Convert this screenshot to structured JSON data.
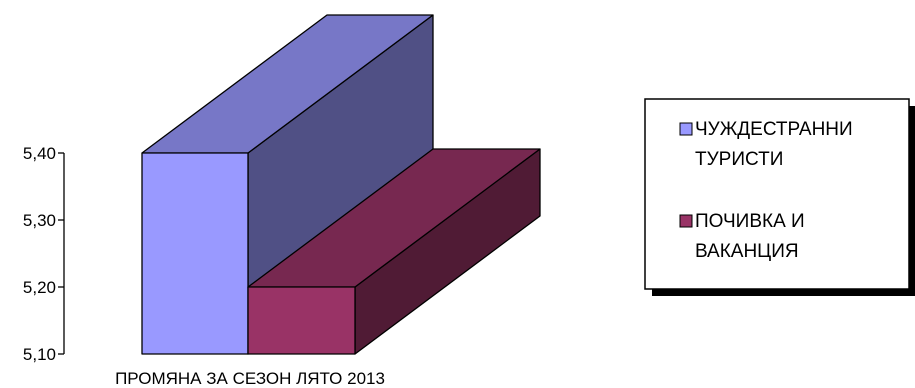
{
  "chart_data": {
    "type": "bar",
    "categories": [
      "ПРОМЯНА ЗА СЕЗОН ЛЯТО 2013"
    ],
    "series": [
      {
        "name": "ЧУЖДЕСТРАННИ ТУРИСТИ",
        "name_lines": [
          "ЧУЖДЕСТРАННИ",
          "ТУРИСТИ"
        ],
        "values": [
          5.4
        ],
        "color": "#9999ff"
      },
      {
        "name": "ПОЧИВКА И ВАКАНЦИЯ",
        "name_lines": [
          "ПОЧИВКА И",
          "ВАКАНЦИЯ"
        ],
        "values": [
          5.2
        ],
        "color": "#993366"
      }
    ],
    "ylim": [
      5.1,
      5.4
    ],
    "yticks": [
      "5,10",
      "5,20",
      "5,30",
      "5,40"
    ],
    "ytick_values": [
      5.1,
      5.2,
      5.3,
      5.4
    ],
    "grid": false,
    "legend": "right",
    "three_d": true
  }
}
